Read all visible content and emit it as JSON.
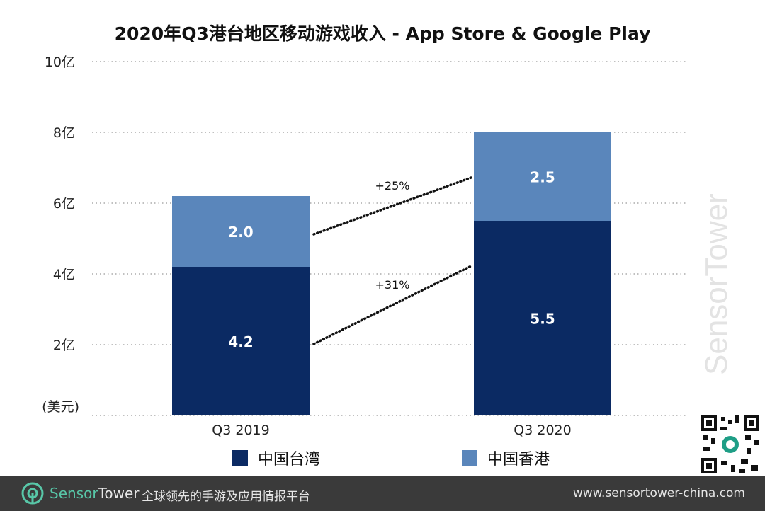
{
  "chart_data": {
    "type": "bar",
    "stacked": true,
    "title": "2020年Q3港台地区移动游戏收入 - App Store & Google Play",
    "unit_label": "(美元)",
    "categories": [
      "Q3  2019",
      "Q3 2020"
    ],
    "series": [
      {
        "name": "中国台湾",
        "values": [
          4.2,
          5.5
        ],
        "color": "#0b2a63"
      },
      {
        "name": "中国香港",
        "values": [
          2.0,
          2.5
        ],
        "color": "#5a86bb"
      }
    ],
    "ylim": [
      0,
      10
    ],
    "y_ticks": [
      "2亿",
      "4亿",
      "6亿",
      "8亿",
      "10亿"
    ],
    "y_tick_values": [
      2,
      4,
      6,
      8,
      10
    ],
    "grid": true,
    "legend_position": "bottom",
    "growth_annotations": [
      {
        "label": "+25%",
        "series": "中国香港"
      },
      {
        "label": "+31%",
        "series": "中国台湾"
      }
    ]
  },
  "watermark_text": "SensorTower",
  "footer": {
    "brand_part1": "Sensor",
    "brand_part2": "Tower",
    "tagline": "全球领先的手游及应用情报平台",
    "url": "www.sensortower-china.com"
  }
}
